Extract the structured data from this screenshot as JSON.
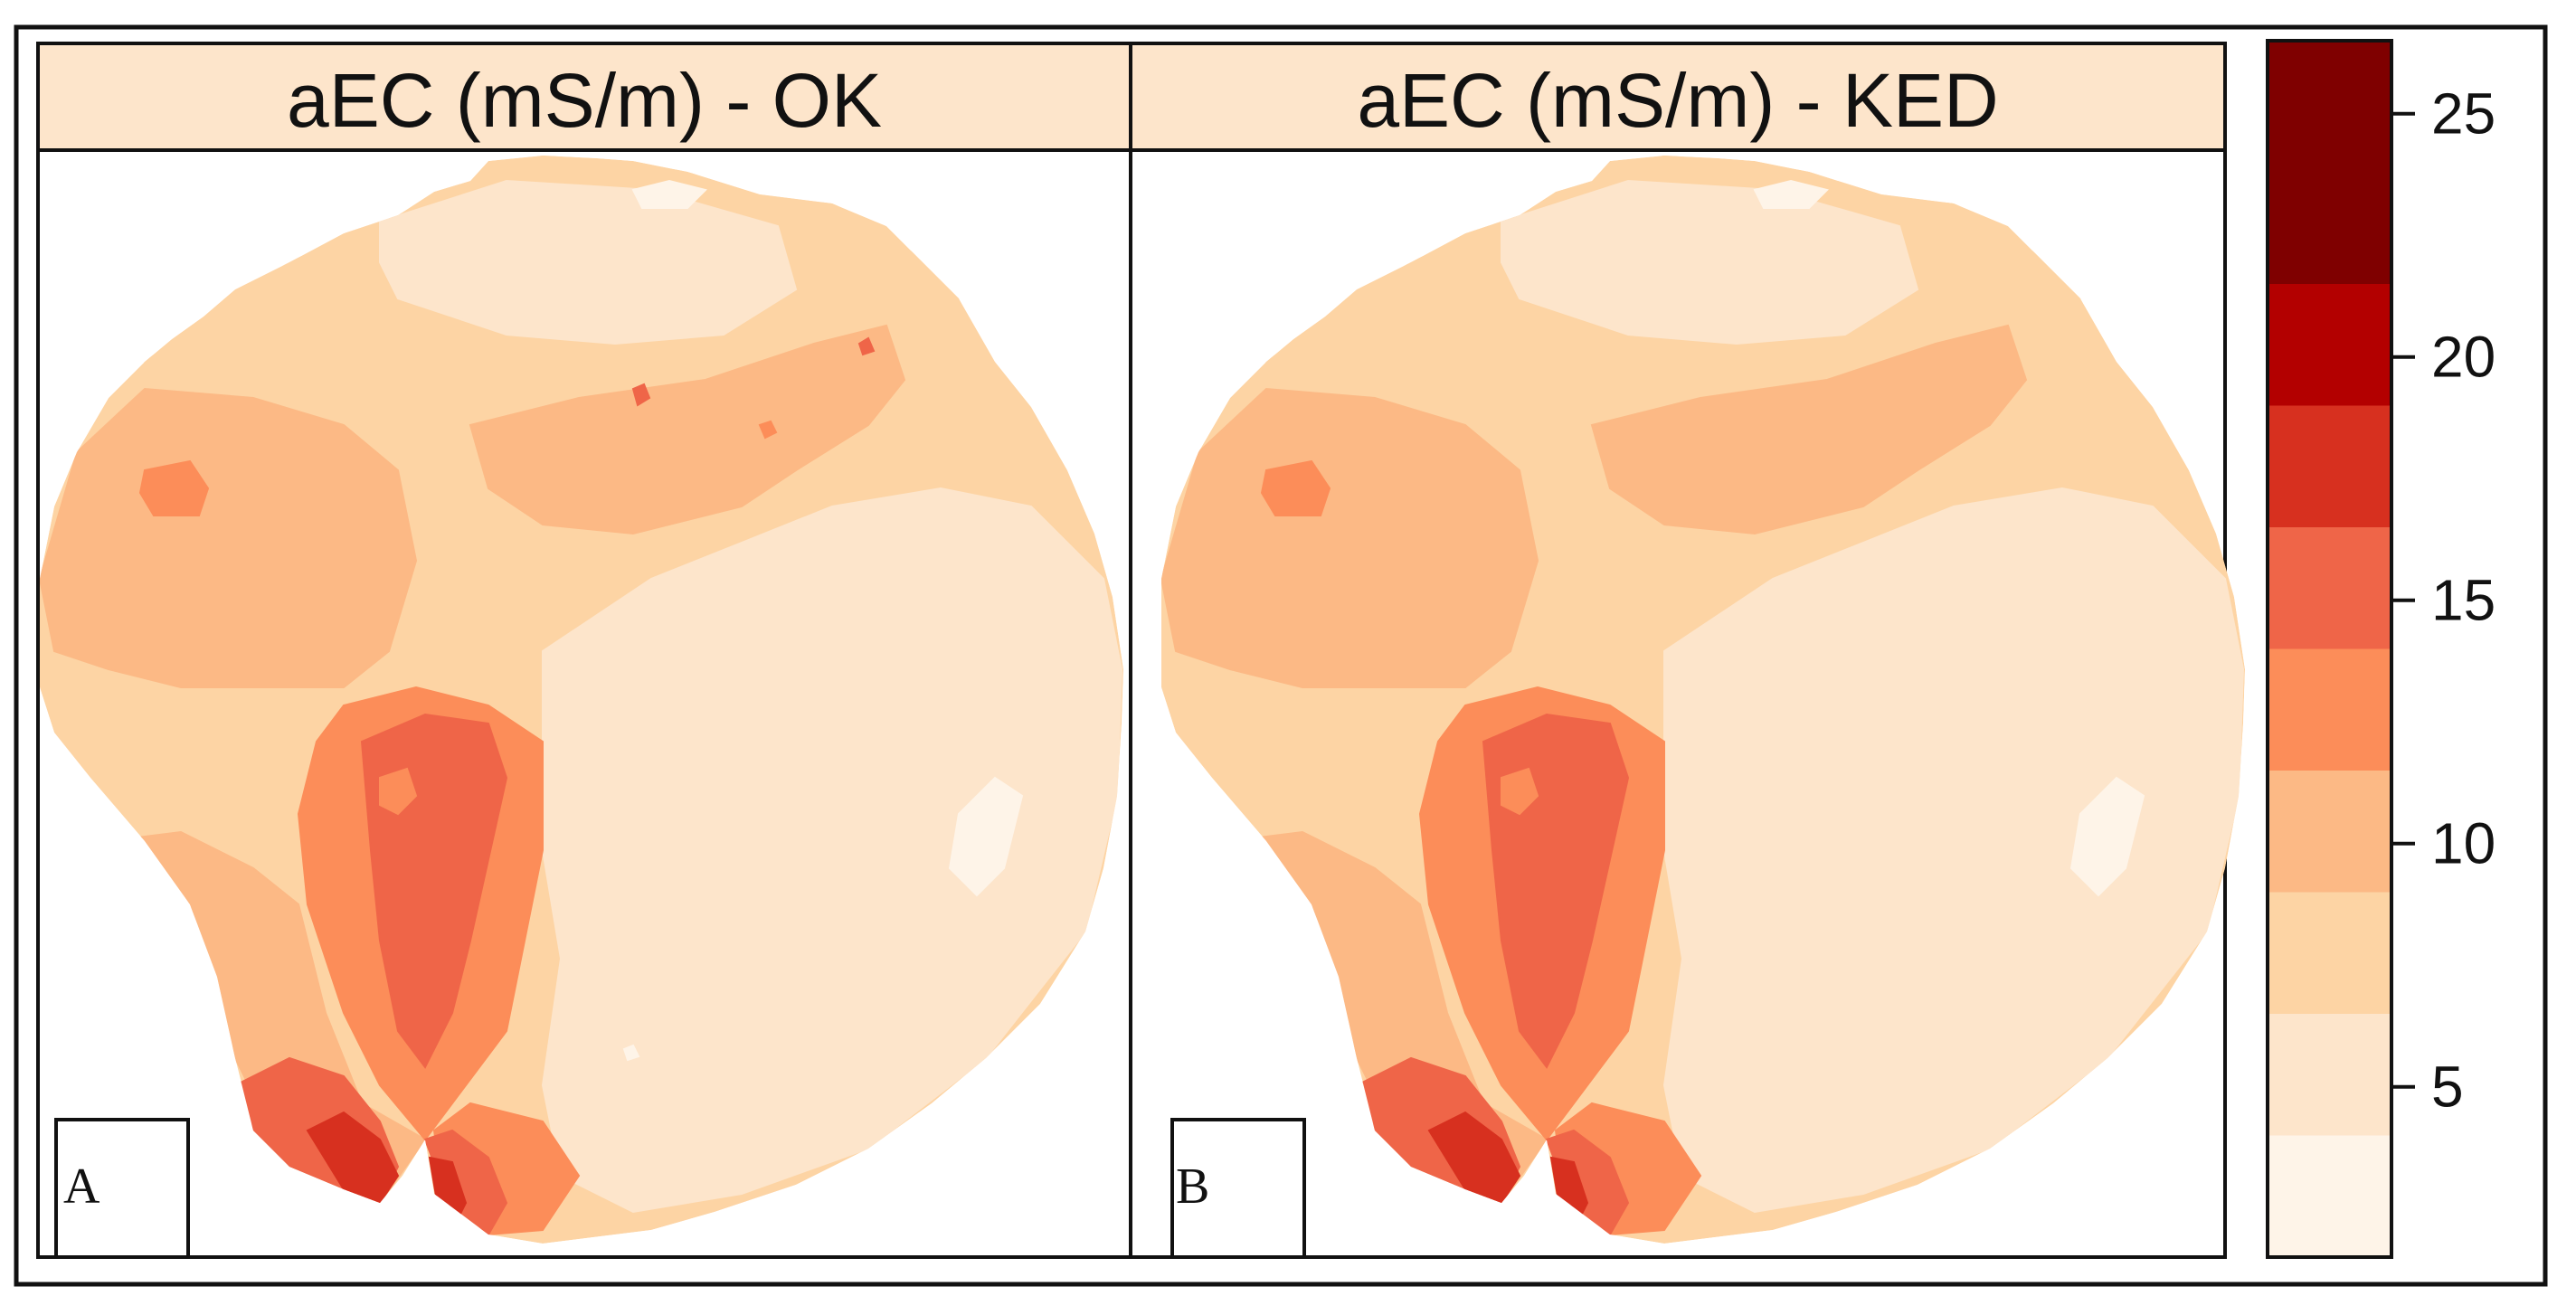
{
  "chart_data": {
    "type": "heatmap",
    "title": "",
    "colorbar": {
      "ticks": [
        5,
        10,
        15,
        20,
        25
      ],
      "range": [
        1.5,
        26.5
      ],
      "classes": [
        {
          "from": 1.5,
          "to": 4,
          "color": "#fef4e8"
        },
        {
          "from": 4,
          "to": 6.5,
          "color": "#fde5cb"
        },
        {
          "from": 6.5,
          "to": 9,
          "color": "#fdd4a4"
        },
        {
          "from": 9,
          "to": 11.5,
          "color": "#fcb985"
        },
        {
          "from": 11.5,
          "to": 14,
          "color": "#fc8d59"
        },
        {
          "from": 14,
          "to": 16.5,
          "color": "#ef6548"
        },
        {
          "from": 16.5,
          "to": 19,
          "color": "#d7301f"
        },
        {
          "from": 19,
          "to": 21.5,
          "color": "#b30000"
        },
        {
          "from": 21.5,
          "to": 26.5,
          "color": "#7f0000"
        }
      ]
    },
    "panels": [
      {
        "title": "aEC (mS/m) - OK",
        "tag": "A"
      },
      {
        "title": "aEC (mS/m) - KED",
        "tag": "B"
      }
    ]
  }
}
